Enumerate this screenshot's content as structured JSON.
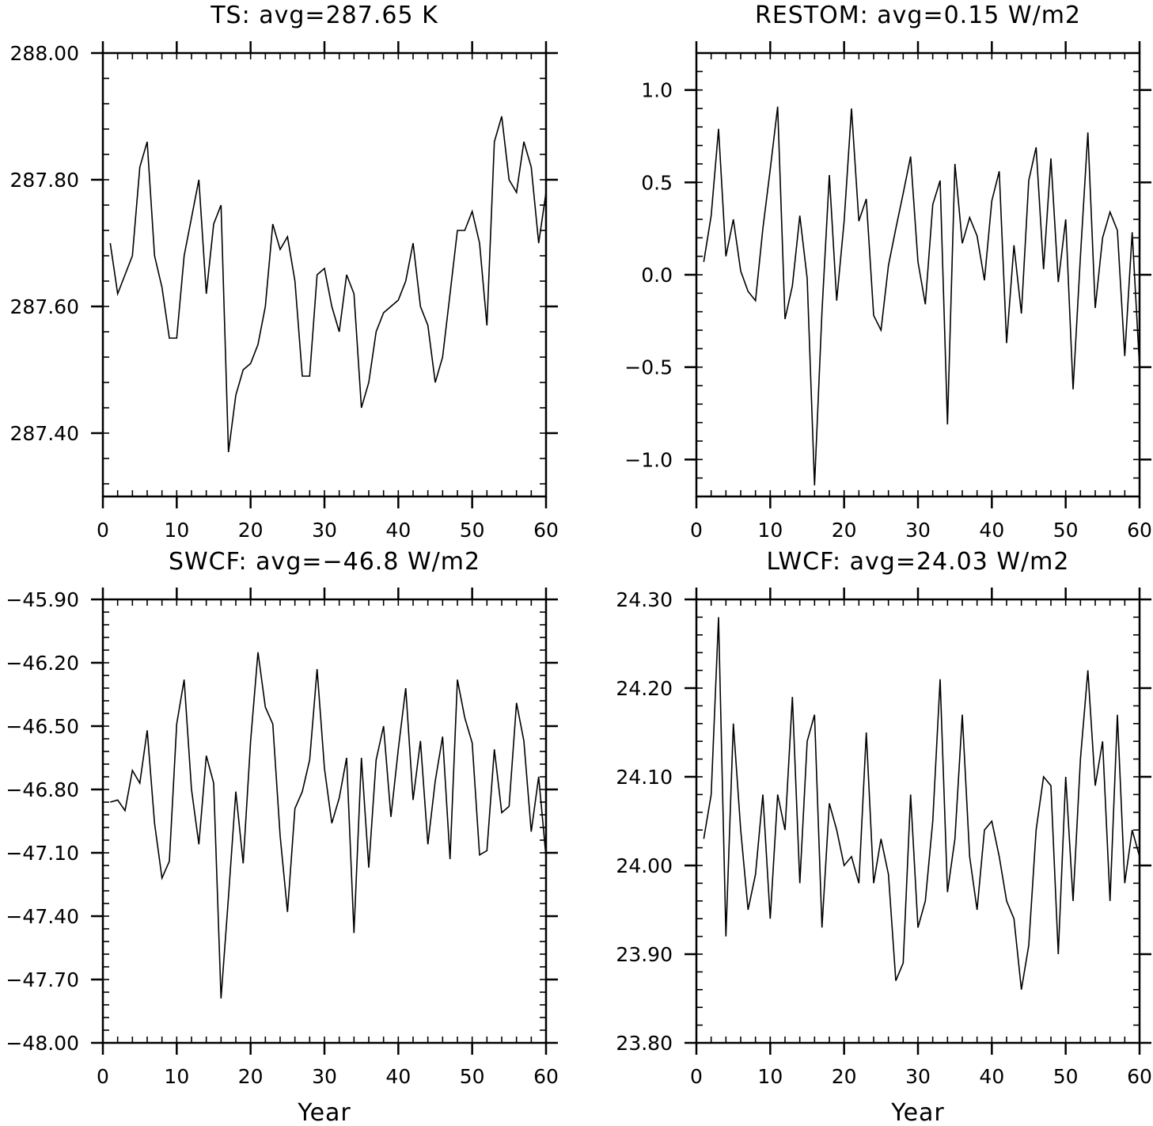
{
  "chart_data": [
    {
      "type": "line",
      "title": "TS: avg=287.65 K",
      "xlabel": "",
      "ylabel": "",
      "xlim": [
        0,
        60
      ],
      "ylim": [
        287.3,
        288.0
      ],
      "xticks": [
        0,
        10,
        20,
        30,
        40,
        50,
        60
      ],
      "xtick_labels": [
        "0",
        "10",
        "20",
        "30",
        "40",
        "50",
        "60"
      ],
      "yticks": [
        288.0,
        287.8,
        287.6,
        287.4
      ],
      "ytick_labels": [
        "288.00",
        "287.80",
        "287.60",
        "287.40"
      ],
      "y_minor_step": 0.04,
      "x_minor_step": 2,
      "grid": false,
      "series": [
        {
          "x": [
            1,
            2,
            3,
            4,
            5,
            6,
            7,
            8,
            9,
            10,
            11,
            12,
            13,
            14,
            15,
            16,
            17,
            18,
            19,
            20,
            21,
            22,
            23,
            24,
            25,
            26,
            27,
            28,
            29,
            30,
            31,
            32,
            33,
            34,
            35,
            36,
            37,
            38,
            39,
            40,
            41,
            42,
            43,
            44,
            45,
            46,
            47,
            48,
            49,
            50,
            51,
            52,
            53,
            54,
            55,
            56,
            57,
            58,
            59,
            60
          ],
          "y": [
            287.7,
            287.62,
            287.65,
            287.68,
            287.82,
            287.86,
            287.68,
            287.63,
            287.55,
            287.55,
            287.68,
            287.74,
            287.8,
            287.62,
            287.73,
            287.76,
            287.37,
            287.46,
            287.5,
            287.51,
            287.54,
            287.6,
            287.73,
            287.69,
            287.71,
            287.64,
            287.49,
            287.49,
            287.65,
            287.66,
            287.6,
            287.56,
            287.65,
            287.62,
            287.44,
            287.48,
            287.56,
            287.59,
            287.6,
            287.61,
            287.64,
            287.7,
            287.6,
            287.57,
            287.48,
            287.52,
            287.62,
            287.72,
            287.72,
            287.75,
            287.7,
            287.57,
            287.86,
            287.9,
            287.8,
            287.78,
            287.86,
            287.82,
            287.7,
            287.78
          ]
        }
      ]
    },
    {
      "type": "line",
      "title": "RESTOM: avg=0.15 W/m2",
      "xlabel": "",
      "ylabel": "",
      "xlim": [
        0,
        60
      ],
      "ylim": [
        -1.2,
        1.2
      ],
      "xticks": [
        0,
        10,
        20,
        30,
        40,
        50,
        60
      ],
      "xtick_labels": [
        "0",
        "10",
        "20",
        "30",
        "40",
        "50",
        "60"
      ],
      "yticks": [
        1.0,
        0.5,
        0.0,
        -0.5,
        -1.0
      ],
      "ytick_labels": [
        "1.0",
        "0.5",
        "0.0",
        "−0.5",
        "−1.0"
      ],
      "y_minor_step": 0.1,
      "x_minor_step": 2,
      "grid": false,
      "series": [
        {
          "x": [
            1,
            2,
            3,
            4,
            5,
            6,
            7,
            8,
            9,
            10,
            11,
            12,
            13,
            14,
            15,
            16,
            17,
            18,
            19,
            20,
            21,
            22,
            23,
            24,
            25,
            26,
            27,
            28,
            29,
            30,
            31,
            32,
            33,
            34,
            35,
            36,
            37,
            38,
            39,
            40,
            41,
            42,
            43,
            44,
            45,
            46,
            47,
            48,
            49,
            50,
            51,
            52,
            53,
            54,
            55,
            56,
            57,
            58,
            59,
            60
          ],
          "y": [
            0.07,
            0.32,
            0.79,
            0.1,
            0.3,
            0.02,
            -0.09,
            -0.14,
            0.25,
            0.57,
            0.91,
            -0.24,
            -0.06,
            0.32,
            -0.02,
            -1.14,
            -0.2,
            0.54,
            -0.14,
            0.29,
            0.9,
            0.29,
            0.41,
            -0.22,
            -0.3,
            0.05,
            0.25,
            0.44,
            0.64,
            0.07,
            -0.16,
            0.38,
            0.51,
            -0.81,
            0.6,
            0.17,
            0.31,
            0.21,
            -0.03,
            0.4,
            0.56,
            -0.37,
            0.16,
            -0.21,
            0.51,
            0.69,
            0.03,
            0.63,
            -0.04,
            0.3,
            -0.62,
            0.1,
            0.77,
            -0.18,
            0.2,
            0.34,
            0.24,
            -0.44,
            0.23,
            -0.5
          ]
        }
      ]
    },
    {
      "type": "line",
      "title": "SWCF: avg=−46.8 W/m2",
      "xlabel": "Year",
      "ylabel": "",
      "xlim": [
        0,
        60
      ],
      "ylim": [
        -48.0,
        -45.9
      ],
      "xticks": [
        0,
        10,
        20,
        30,
        40,
        50,
        60
      ],
      "xtick_labels": [
        "0",
        "10",
        "20",
        "30",
        "40",
        "50",
        "60"
      ],
      "yticks": [
        -45.9,
        -46.2,
        -46.5,
        -46.8,
        -47.1,
        -47.4,
        -47.7,
        -48.0
      ],
      "ytick_labels": [
        "−45.90",
        "−46.20",
        "−46.50",
        "−46.80",
        "−47.10",
        "−47.40",
        "−47.70",
        "−48.00"
      ],
      "y_minor_step": 0.06,
      "x_minor_step": 2,
      "grid": false,
      "series": [
        {
          "x": [
            1,
            2,
            3,
            4,
            5,
            6,
            7,
            8,
            9,
            10,
            11,
            12,
            13,
            14,
            15,
            16,
            17,
            18,
            19,
            20,
            21,
            22,
            23,
            24,
            25,
            26,
            27,
            28,
            29,
            30,
            31,
            32,
            33,
            34,
            35,
            36,
            37,
            38,
            39,
            40,
            41,
            42,
            43,
            44,
            45,
            46,
            47,
            48,
            49,
            50,
            51,
            52,
            53,
            54,
            55,
            56,
            57,
            58,
            59,
            60
          ],
          "y": [
            -46.86,
            -46.85,
            -46.9,
            -46.71,
            -46.77,
            -46.52,
            -46.96,
            -47.22,
            -47.14,
            -46.49,
            -46.28,
            -46.8,
            -47.06,
            -46.64,
            -46.77,
            -47.79,
            -47.31,
            -46.81,
            -47.15,
            -46.57,
            -46.15,
            -46.41,
            -46.49,
            -47.02,
            -47.38,
            -46.89,
            -46.81,
            -46.66,
            -46.23,
            -46.7,
            -46.96,
            -46.84,
            -46.65,
            -47.48,
            -46.65,
            -47.17,
            -46.66,
            -46.5,
            -46.93,
            -46.61,
            -46.32,
            -46.85,
            -46.57,
            -47.06,
            -46.76,
            -46.55,
            -47.13,
            -46.28,
            -46.46,
            -46.58,
            -47.11,
            -47.09,
            -46.61,
            -46.91,
            -46.88,
            -46.39,
            -46.57,
            -47.0,
            -46.74,
            -47.12
          ]
        }
      ]
    },
    {
      "type": "line",
      "title": "LWCF: avg=24.03 W/m2",
      "xlabel": "Year",
      "ylabel": "",
      "xlim": [
        0,
        60
      ],
      "ylim": [
        23.8,
        24.3
      ],
      "xticks": [
        0,
        10,
        20,
        30,
        40,
        50,
        60
      ],
      "xtick_labels": [
        "0",
        "10",
        "20",
        "30",
        "40",
        "50",
        "60"
      ],
      "yticks": [
        24.3,
        24.2,
        24.1,
        24.0,
        23.9,
        23.8
      ],
      "ytick_labels": [
        "24.30",
        "24.20",
        "24.10",
        "24.00",
        "23.90",
        "23.80"
      ],
      "y_minor_step": 0.02,
      "x_minor_step": 2,
      "grid": false,
      "series": [
        {
          "x": [
            1,
            2,
            3,
            4,
            5,
            6,
            7,
            8,
            9,
            10,
            11,
            12,
            13,
            14,
            15,
            16,
            17,
            18,
            19,
            20,
            21,
            22,
            23,
            24,
            25,
            26,
            27,
            28,
            29,
            30,
            31,
            32,
            33,
            34,
            35,
            36,
            37,
            38,
            39,
            40,
            41,
            42,
            43,
            44,
            45,
            46,
            47,
            48,
            49,
            50,
            51,
            52,
            53,
            54,
            55,
            56,
            57,
            58,
            59,
            60
          ],
          "y": [
            24.03,
            24.08,
            24.28,
            23.92,
            24.16,
            24.04,
            23.95,
            23.99,
            24.08,
            23.94,
            24.08,
            24.04,
            24.19,
            23.98,
            24.14,
            24.17,
            23.93,
            24.07,
            24.04,
            24.0,
            24.01,
            23.98,
            24.15,
            23.98,
            24.03,
            23.99,
            23.87,
            23.89,
            24.08,
            23.93,
            23.96,
            24.05,
            24.21,
            23.97,
            24.03,
            24.17,
            24.01,
            23.95,
            24.04,
            24.05,
            24.01,
            23.96,
            23.94,
            23.86,
            23.91,
            24.04,
            24.1,
            24.09,
            23.9,
            24.1,
            23.96,
            24.12,
            24.22,
            24.09,
            24.14,
            23.96,
            24.17,
            23.98,
            24.04,
            24.01
          ]
        }
      ]
    }
  ]
}
